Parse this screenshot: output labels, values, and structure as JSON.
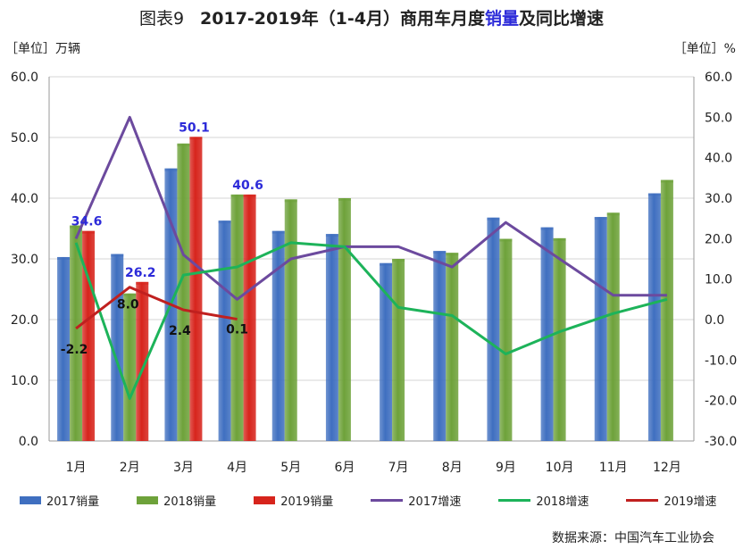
{
  "title": {
    "prefix": "图表9",
    "before": "2017-2019年（1-4月）商用车月度",
    "accent": "销量",
    "after": "及同比增速"
  },
  "units": {
    "left": "［单位］万辆",
    "right": "［单位］%"
  },
  "source": "数据来源：中国汽车工业协会",
  "chart_data": {
    "type": "bar",
    "categories": [
      "1月",
      "2月",
      "3月",
      "4月",
      "5月",
      "6月",
      "7月",
      "8月",
      "9月",
      "10月",
      "11月",
      "12月"
    ],
    "y_left": {
      "lim": [
        0,
        60
      ],
      "ticks": [
        "0.0",
        "10.0",
        "20.0",
        "30.0",
        "40.0",
        "50.0",
        "60.0"
      ]
    },
    "y_right": {
      "lim": [
        -30,
        60
      ],
      "ticks": [
        "-30.0",
        "-20.0",
        "-10.0",
        "0.0",
        "10.0",
        "20.0",
        "30.0",
        "40.0",
        "50.0",
        "60.0"
      ]
    },
    "bar_series": [
      {
        "name": "2017销量",
        "color": "#3f6fc0",
        "values": [
          30.3,
          30.8,
          44.9,
          36.3,
          34.6,
          34.1,
          29.3,
          31.3,
          36.8,
          35.2,
          36.9,
          40.8
        ]
      },
      {
        "name": "2018销量",
        "color": "#6ea23a",
        "values": [
          35.5,
          24.3,
          49.0,
          40.6,
          39.8,
          40.0,
          30.0,
          31.0,
          33.3,
          33.4,
          37.6,
          43.0
        ]
      },
      {
        "name": "2019销量",
        "color": "#d7241c",
        "values": [
          34.6,
          26.2,
          50.1,
          40.6
        ]
      }
    ],
    "line_series": [
      {
        "name": "2017增速",
        "color": "#6c4a9e",
        "values": [
          20.0,
          50.0,
          16.0,
          5.0,
          15.0,
          18.0,
          18.0,
          13.0,
          24.0,
          15.0,
          6.0,
          6.0
        ]
      },
      {
        "name": "2018增速",
        "color": "#1db35a",
        "values": [
          19.0,
          -19.5,
          11.0,
          13.0,
          19.0,
          18.0,
          3.0,
          1.0,
          -8.5,
          -3.0,
          1.5,
          5.0
        ]
      },
      {
        "name": "2019增速",
        "color": "#c0201f",
        "values": [
          -2.2,
          8.0,
          2.4,
          0.1
        ]
      }
    ],
    "bar_labels": {
      "series": "2019销量",
      "color": "#2d2bd9",
      "text": [
        "34.6",
        "26.2",
        "50.1",
        "40.6"
      ]
    },
    "line_labels": {
      "series": "2019增速",
      "color": "#111111",
      "text": [
        "-2.2",
        "8.0",
        "2.4",
        "0.1"
      ]
    },
    "grid": {
      "horizontal": true,
      "vertical": false
    },
    "legend_position": "bottom"
  }
}
